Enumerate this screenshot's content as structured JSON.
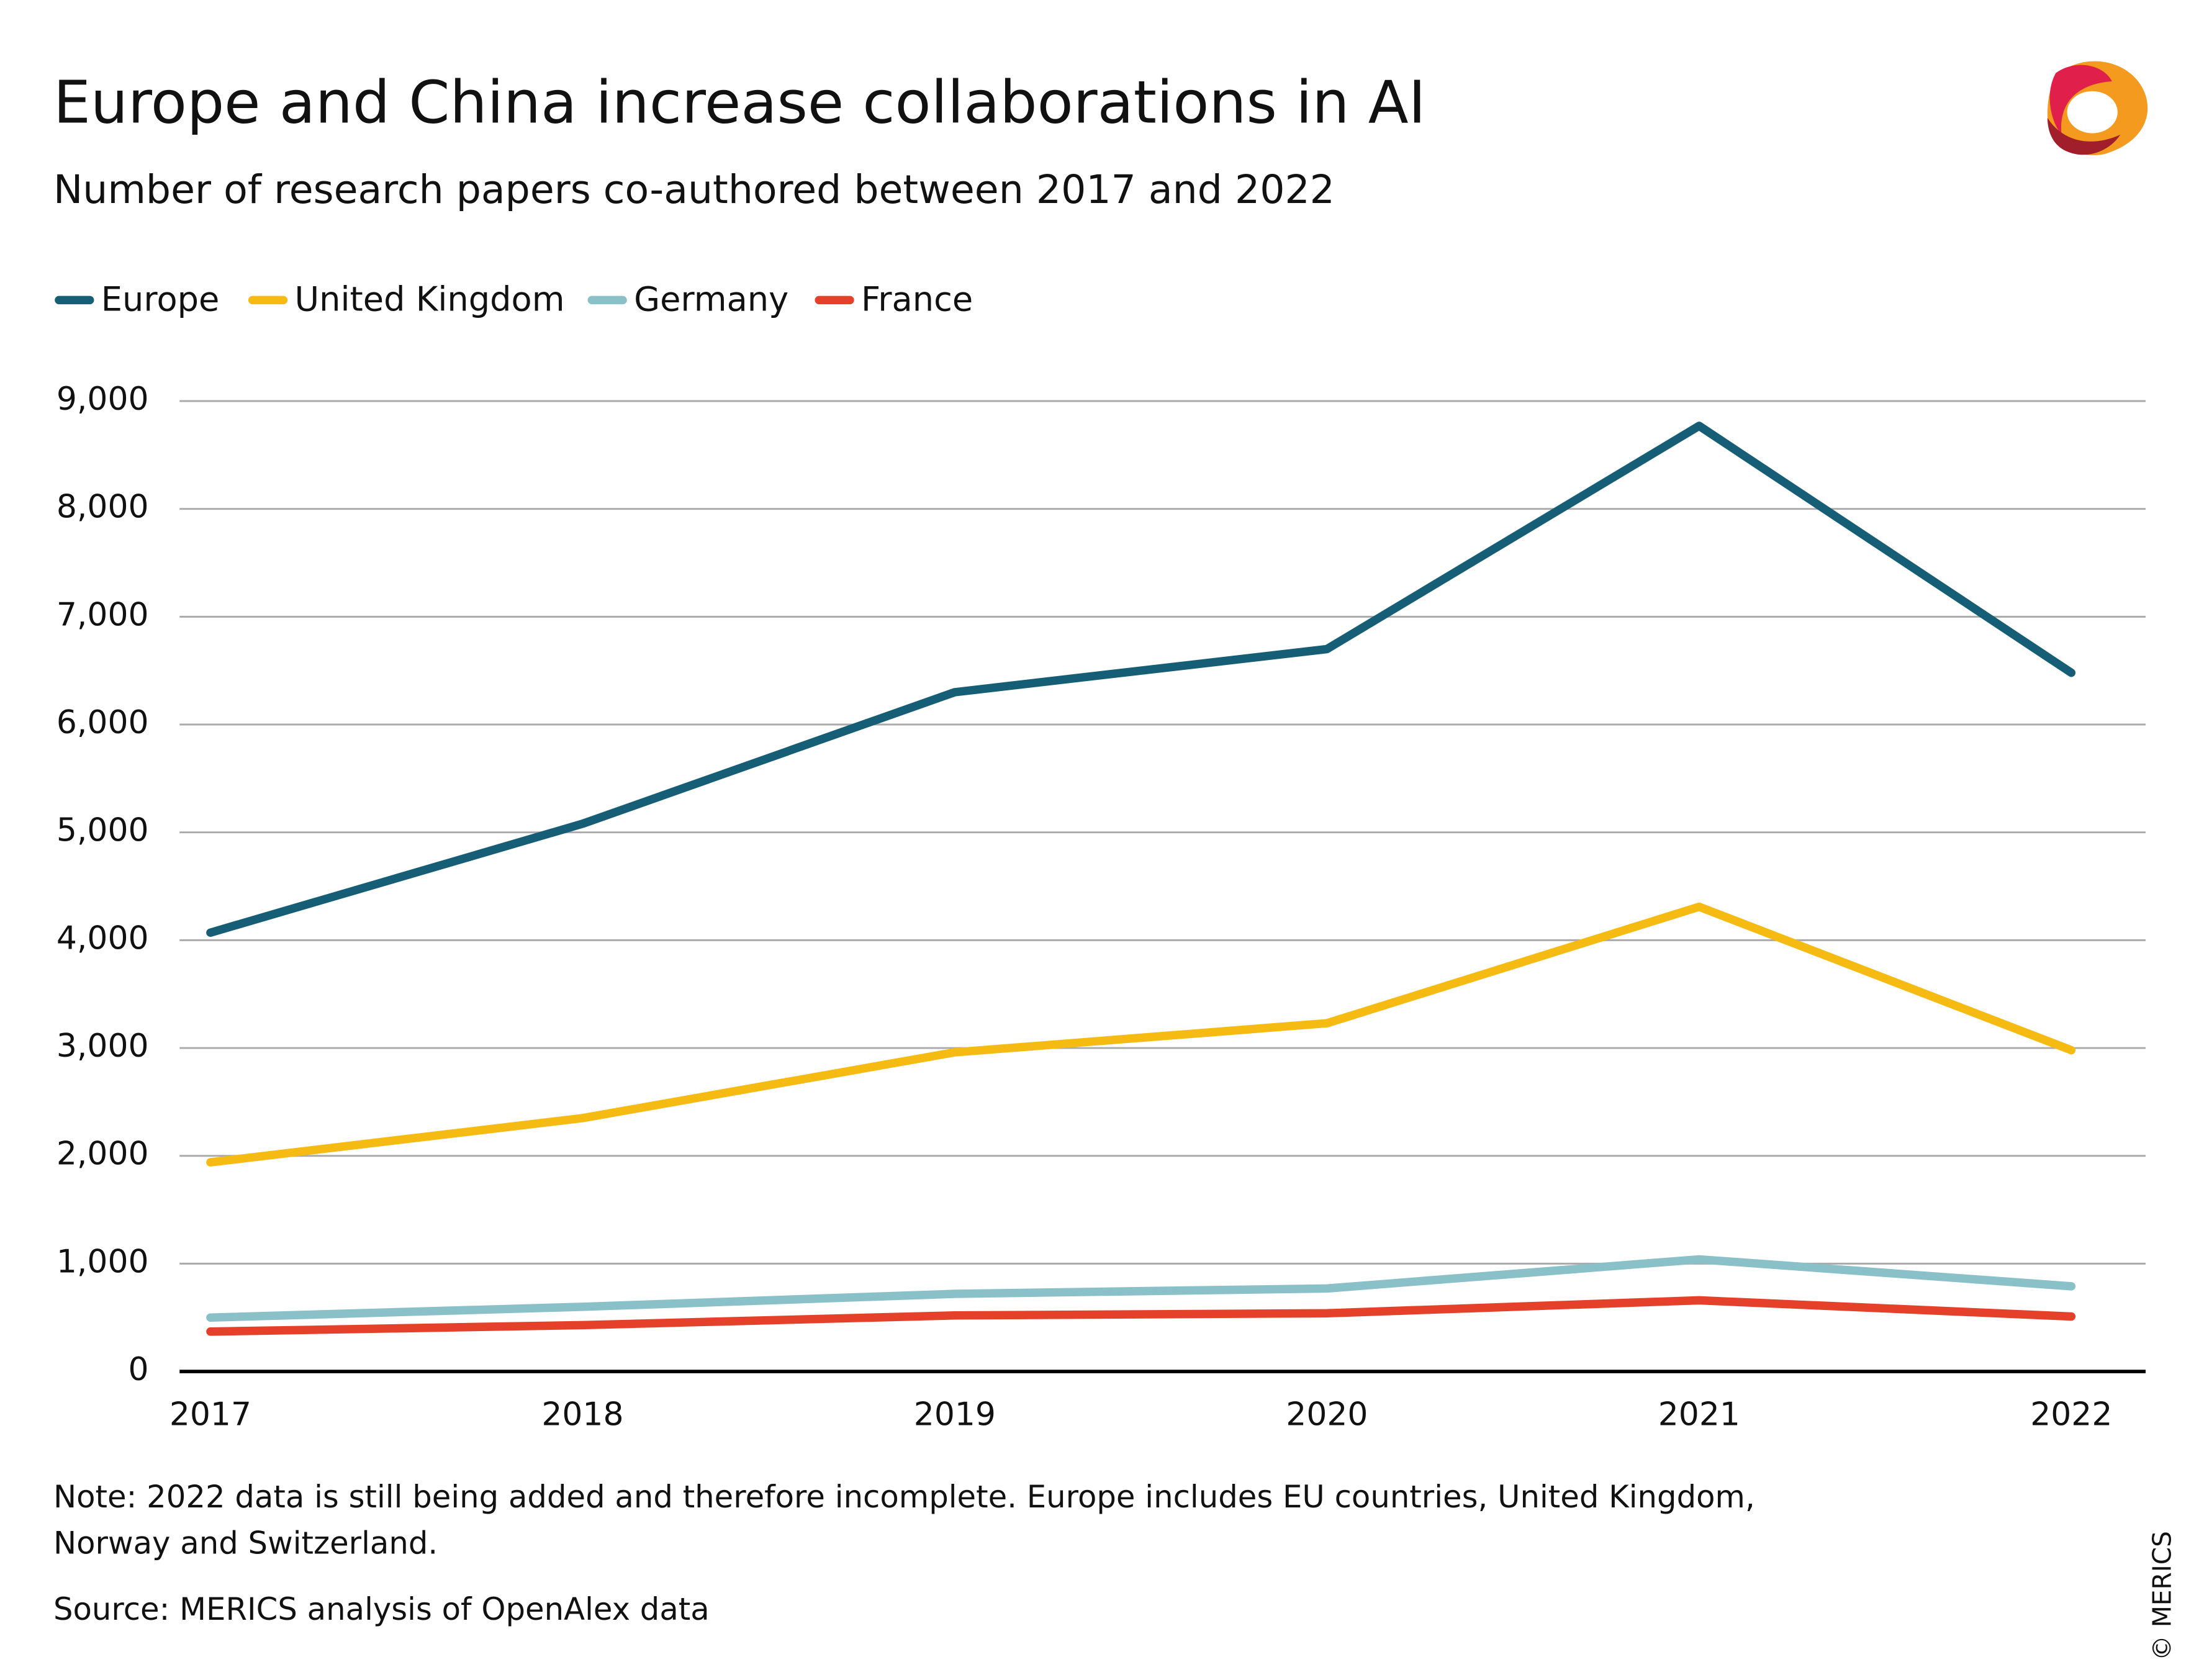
{
  "chart_data": {
    "type": "line",
    "title": "Europe and China increase collaborations in AI",
    "subtitle": "Number of research papers co-authored between 2017 and 2022",
    "categories": [
      "2017",
      "2018",
      "2019",
      "2020",
      "2021",
      "2022"
    ],
    "series": [
      {
        "name": "Europe",
        "color": "#155e75",
        "values": [
          4070,
          5080,
          6300,
          6700,
          8770,
          6480
        ]
      },
      {
        "name": "United Kingdom",
        "color": "#f6bb12",
        "values": [
          1940,
          2350,
          2960,
          3230,
          4310,
          2980
        ]
      },
      {
        "name": "Germany",
        "color": "#8ac0c8",
        "values": [
          500,
          600,
          720,
          770,
          1040,
          790
        ]
      },
      {
        "name": "France",
        "color": "#e5402a",
        "values": [
          370,
          430,
          520,
          540,
          660,
          510
        ]
      }
    ],
    "ylim": [
      0,
      9000
    ],
    "yticks": [
      0,
      {
        "value": 1000,
        "label": "1,000"
      },
      {
        "value": 2000,
        "label": "2,000"
      },
      {
        "value": 3000,
        "label": "3,000"
      },
      {
        "value": 4000,
        "label": "4,000"
      },
      {
        "value": 5000,
        "label": "5,000"
      },
      {
        "value": 6000,
        "label": "6,000"
      },
      {
        "value": 7000,
        "label": "7,000"
      },
      {
        "value": 8000,
        "label": "8,000"
      },
      {
        "value": 9000,
        "label": "9,000"
      }
    ],
    "grid": true,
    "legend": "top-left",
    "note": "Note: 2022 data is still being added and therefore incomplete. Europe includes EU countries, United Kingdom, Norway and Switzerland.",
    "source": "Source: MERICS analysis of OpenAlex data",
    "copyright": "© MERICS"
  }
}
